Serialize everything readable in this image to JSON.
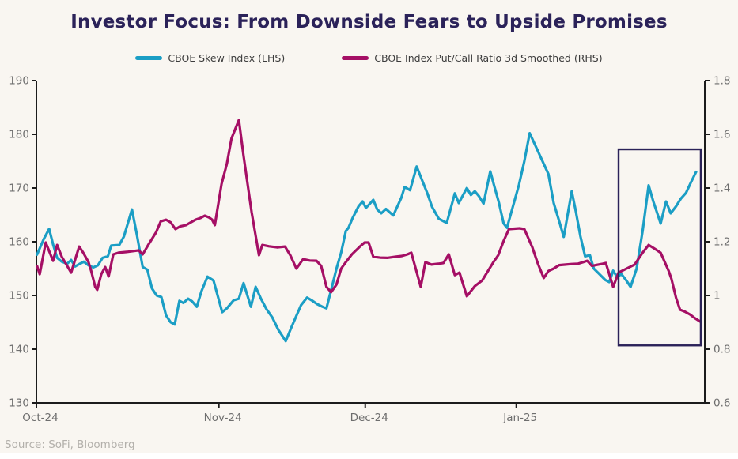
{
  "title": "Investor Focus: From Downside Fears to Upside Promises",
  "legend": [
    {
      "label": "CBOE Skew Index (LHS)",
      "color": "#1b9ec5"
    },
    {
      "label": "CBOE Index Put/Call Ratio 3d Smoothed (RHS)",
      "color": "#a50f65"
    }
  ],
  "source": "Source: SoFi, Bloomberg",
  "colors": {
    "background": "#f9f6f1",
    "title": "#2b2259",
    "axis": "#1c1c1c",
    "tick_text": "#6e6e6e",
    "highlight_box": "#2b2259",
    "skew_line": "#1b9ec5",
    "put_call_line": "#a50f65"
  },
  "chart_data": {
    "type": "line",
    "title": "Investor Focus: From Downside Fears to Upside Promises",
    "grid": false,
    "legend_position": "top",
    "x_axis": {
      "unit": "percent_of_axis_width",
      "ticks": [
        {
          "label": "Oct-24",
          "pct": 0
        },
        {
          "label": "Nov-24",
          "pct": 27.3
        },
        {
          "label": "Dec-24",
          "pct": 49.2
        },
        {
          "label": "Jan-25",
          "pct": 71.8
        }
      ]
    },
    "left_axis": {
      "min": 130,
      "max": 190,
      "step": 10,
      "tick_labels": [
        "130",
        "140",
        "150",
        "160",
        "170",
        "180",
        "190"
      ]
    },
    "right_axis": {
      "min": 0.6,
      "max": 1.8,
      "step": 0.2,
      "tick_labels": [
        "0.6",
        "0.8",
        "1",
        "1.2",
        "1.4",
        "1.6",
        "1.8"
      ]
    },
    "highlight_box": {
      "x_pct": [
        87.1,
        99.4
      ],
      "lhs_value_range": [
        140.7,
        177.2
      ]
    },
    "series": [
      {
        "name": "CBOE Skew Index",
        "axis": "left",
        "color": "#1b9ec5",
        "points": [
          [
            0.1,
            157.6
          ],
          [
            1.1,
            160.5
          ],
          [
            1.9,
            162.4
          ],
          [
            2.5,
            159.5
          ],
          [
            3.1,
            157.0
          ],
          [
            3.8,
            156.3
          ],
          [
            4.6,
            155.9
          ],
          [
            5.2,
            156.6
          ],
          [
            5.8,
            155.4
          ],
          [
            6.5,
            155.9
          ],
          [
            7.1,
            156.3
          ],
          [
            7.8,
            155.6
          ],
          [
            8.5,
            155.2
          ],
          [
            9.2,
            155.6
          ],
          [
            9.9,
            157.0
          ],
          [
            10.7,
            157.3
          ],
          [
            11.2,
            159.3
          ],
          [
            12.4,
            159.4
          ],
          [
            13.1,
            161.0
          ],
          [
            14.3,
            166.0
          ],
          [
            15.0,
            161.5
          ],
          [
            15.9,
            155.3
          ],
          [
            16.6,
            154.8
          ],
          [
            17.3,
            151.3
          ],
          [
            18.0,
            150.0
          ],
          [
            18.7,
            149.7
          ],
          [
            19.4,
            146.3
          ],
          [
            20.1,
            145.0
          ],
          [
            20.7,
            144.6
          ],
          [
            21.4,
            149.0
          ],
          [
            22.0,
            148.6
          ],
          [
            22.7,
            149.4
          ],
          [
            23.3,
            148.9
          ],
          [
            24.0,
            147.9
          ],
          [
            24.7,
            150.8
          ],
          [
            25.6,
            153.5
          ],
          [
            26.5,
            152.8
          ],
          [
            27.8,
            146.9
          ],
          [
            28.5,
            147.6
          ],
          [
            29.5,
            149.1
          ],
          [
            30.3,
            149.4
          ],
          [
            31.0,
            152.3
          ],
          [
            32.1,
            147.9
          ],
          [
            32.8,
            151.6
          ],
          [
            33.6,
            149.4
          ],
          [
            34.4,
            147.5
          ],
          [
            35.3,
            145.9
          ],
          [
            36.2,
            143.6
          ],
          [
            37.3,
            141.5
          ],
          [
            38.1,
            143.9
          ],
          [
            38.9,
            146.2
          ],
          [
            39.6,
            148.2
          ],
          [
            40.5,
            149.6
          ],
          [
            41.3,
            149.0
          ],
          [
            42.0,
            148.4
          ],
          [
            42.8,
            147.9
          ],
          [
            43.4,
            147.6
          ],
          [
            44.1,
            151.0
          ],
          [
            44.9,
            155.0
          ],
          [
            45.6,
            158.0
          ],
          [
            46.3,
            162.0
          ],
          [
            46.7,
            162.6
          ],
          [
            47.3,
            164.4
          ],
          [
            48.2,
            166.6
          ],
          [
            48.8,
            167.5
          ],
          [
            49.3,
            166.3
          ],
          [
            49.9,
            167.1
          ],
          [
            50.4,
            167.8
          ],
          [
            51.0,
            166.0
          ],
          [
            51.6,
            165.3
          ],
          [
            52.3,
            166.1
          ],
          [
            53.4,
            164.9
          ],
          [
            54.6,
            168.2
          ],
          [
            55.1,
            170.2
          ],
          [
            55.9,
            169.6
          ],
          [
            56.9,
            174.0
          ],
          [
            57.6,
            171.8
          ],
          [
            58.5,
            169.0
          ],
          [
            59.2,
            166.5
          ],
          [
            60.2,
            164.3
          ],
          [
            61.4,
            163.5
          ],
          [
            62.6,
            169.0
          ],
          [
            63.2,
            167.2
          ],
          [
            64.4,
            170.0
          ],
          [
            65.0,
            168.7
          ],
          [
            65.6,
            169.4
          ],
          [
            66.2,
            168.5
          ],
          [
            66.9,
            167.1
          ],
          [
            67.9,
            173.1
          ],
          [
            68.5,
            170.4
          ],
          [
            69.2,
            167.3
          ],
          [
            69.9,
            163.4
          ],
          [
            70.4,
            162.6
          ],
          [
            71.5,
            167.5
          ],
          [
            72.2,
            170.6
          ],
          [
            73.0,
            175.0
          ],
          [
            73.8,
            180.2
          ],
          [
            74.8,
            177.5
          ],
          [
            75.9,
            174.5
          ],
          [
            76.6,
            172.6
          ],
          [
            77.4,
            167.2
          ],
          [
            78.2,
            163.9
          ],
          [
            78.9,
            160.9
          ],
          [
            80.1,
            169.4
          ],
          [
            80.7,
            165.7
          ],
          [
            81.4,
            161.0
          ],
          [
            82.1,
            157.3
          ],
          [
            82.8,
            157.5
          ],
          [
            83.4,
            155.0
          ],
          [
            84.3,
            153.9
          ],
          [
            85.1,
            152.9
          ],
          [
            85.7,
            152.5
          ],
          [
            86.3,
            154.6
          ],
          [
            86.9,
            153.4
          ],
          [
            87.5,
            154.0
          ],
          [
            88.2,
            152.9
          ],
          [
            88.9,
            151.6
          ],
          [
            89.8,
            155.0
          ],
          [
            90.7,
            162.0
          ],
          [
            91.6,
            170.5
          ],
          [
            92.3,
            167.5
          ],
          [
            93.4,
            163.4
          ],
          [
            94.2,
            167.5
          ],
          [
            94.9,
            165.3
          ],
          [
            95.7,
            166.6
          ],
          [
            96.4,
            168.0
          ],
          [
            97.2,
            169.1
          ],
          [
            97.9,
            171.0
          ],
          [
            98.7,
            173.0
          ]
        ]
      },
      {
        "name": "CBOE Index Put/Call Ratio 3d Smoothed",
        "axis": "right",
        "color": "#a50f65",
        "points": [
          [
            0.1,
            1.11
          ],
          [
            0.5,
            1.079
          ],
          [
            1.4,
            1.197
          ],
          [
            2.5,
            1.129
          ],
          [
            3.1,
            1.188
          ],
          [
            3.8,
            1.144
          ],
          [
            5.2,
            1.085
          ],
          [
            6.4,
            1.182
          ],
          [
            7.0,
            1.159
          ],
          [
            7.8,
            1.124
          ],
          [
            8.2,
            1.091
          ],
          [
            8.8,
            1.032
          ],
          [
            9.1,
            1.021
          ],
          [
            9.7,
            1.079
          ],
          [
            10.3,
            1.106
          ],
          [
            10.8,
            1.071
          ],
          [
            11.5,
            1.153
          ],
          [
            12.3,
            1.159
          ],
          [
            13.5,
            1.162
          ],
          [
            15.3,
            1.168
          ],
          [
            15.9,
            1.153
          ],
          [
            16.8,
            1.191
          ],
          [
            17.9,
            1.235
          ],
          [
            18.6,
            1.276
          ],
          [
            19.4,
            1.282
          ],
          [
            20.1,
            1.272
          ],
          [
            20.8,
            1.247
          ],
          [
            21.5,
            1.257
          ],
          [
            22.4,
            1.262
          ],
          [
            23.1,
            1.272
          ],
          [
            23.8,
            1.282
          ],
          [
            24.6,
            1.289
          ],
          [
            25.2,
            1.297
          ],
          [
            25.8,
            1.291
          ],
          [
            26.3,
            1.282
          ],
          [
            26.7,
            1.262
          ],
          [
            27.7,
            1.415
          ],
          [
            28.5,
            1.49
          ],
          [
            29.2,
            1.585
          ],
          [
            30.3,
            1.653
          ],
          [
            31.0,
            1.52
          ],
          [
            31.6,
            1.415
          ],
          [
            32.2,
            1.31
          ],
          [
            32.7,
            1.238
          ],
          [
            33.3,
            1.15
          ],
          [
            33.8,
            1.188
          ],
          [
            34.8,
            1.183
          ],
          [
            36.0,
            1.179
          ],
          [
            37.2,
            1.182
          ],
          [
            38.0,
            1.149
          ],
          [
            38.9,
            1.1
          ],
          [
            39.9,
            1.135
          ],
          [
            40.9,
            1.13
          ],
          [
            41.9,
            1.129
          ],
          [
            42.6,
            1.11
          ],
          [
            43.4,
            1.032
          ],
          [
            44.1,
            1.012
          ],
          [
            44.9,
            1.041
          ],
          [
            45.6,
            1.1
          ],
          [
            46.2,
            1.121
          ],
          [
            47.2,
            1.153
          ],
          [
            48.4,
            1.182
          ],
          [
            49.1,
            1.197
          ],
          [
            49.7,
            1.197
          ],
          [
            50.4,
            1.144
          ],
          [
            51.4,
            1.141
          ],
          [
            52.5,
            1.14
          ],
          [
            53.7,
            1.144
          ],
          [
            54.7,
            1.147
          ],
          [
            55.5,
            1.153
          ],
          [
            56.1,
            1.159
          ],
          [
            57.5,
            1.032
          ],
          [
            58.2,
            1.124
          ],
          [
            59.1,
            1.115
          ],
          [
            60.1,
            1.118
          ],
          [
            60.9,
            1.121
          ],
          [
            61.7,
            1.153
          ],
          [
            62.6,
            1.076
          ],
          [
            63.3,
            1.085
          ],
          [
            64.4,
            0.997
          ],
          [
            65.6,
            1.035
          ],
          [
            66.7,
            1.056
          ],
          [
            68.3,
            1.121
          ],
          [
            69.1,
            1.15
          ],
          [
            69.9,
            1.203
          ],
          [
            70.7,
            1.247
          ],
          [
            72.3,
            1.25
          ],
          [
            73.0,
            1.247
          ],
          [
            74.2,
            1.179
          ],
          [
            75.0,
            1.12
          ],
          [
            75.9,
            1.065
          ],
          [
            76.6,
            1.091
          ],
          [
            77.4,
            1.1
          ],
          [
            78.2,
            1.113
          ],
          [
            79.2,
            1.115
          ],
          [
            80.1,
            1.117
          ],
          [
            81.0,
            1.118
          ],
          [
            81.8,
            1.124
          ],
          [
            82.4,
            1.129
          ],
          [
            83.1,
            1.11
          ],
          [
            83.9,
            1.114
          ],
          [
            84.7,
            1.118
          ],
          [
            85.2,
            1.121
          ],
          [
            86.3,
            1.032
          ],
          [
            87.1,
            1.085
          ],
          [
            88.3,
            1.1
          ],
          [
            89.5,
            1.115
          ],
          [
            90.7,
            1.159
          ],
          [
            91.6,
            1.188
          ],
          [
            92.5,
            1.174
          ],
          [
            93.4,
            1.159
          ],
          [
            94.6,
            1.091
          ],
          [
            95.0,
            1.062
          ],
          [
            95.7,
            0.991
          ],
          [
            96.3,
            0.947
          ],
          [
            97.0,
            0.94
          ],
          [
            97.8,
            0.929
          ],
          [
            98.5,
            0.916
          ],
          [
            99.3,
            0.903
          ]
        ]
      }
    ]
  }
}
